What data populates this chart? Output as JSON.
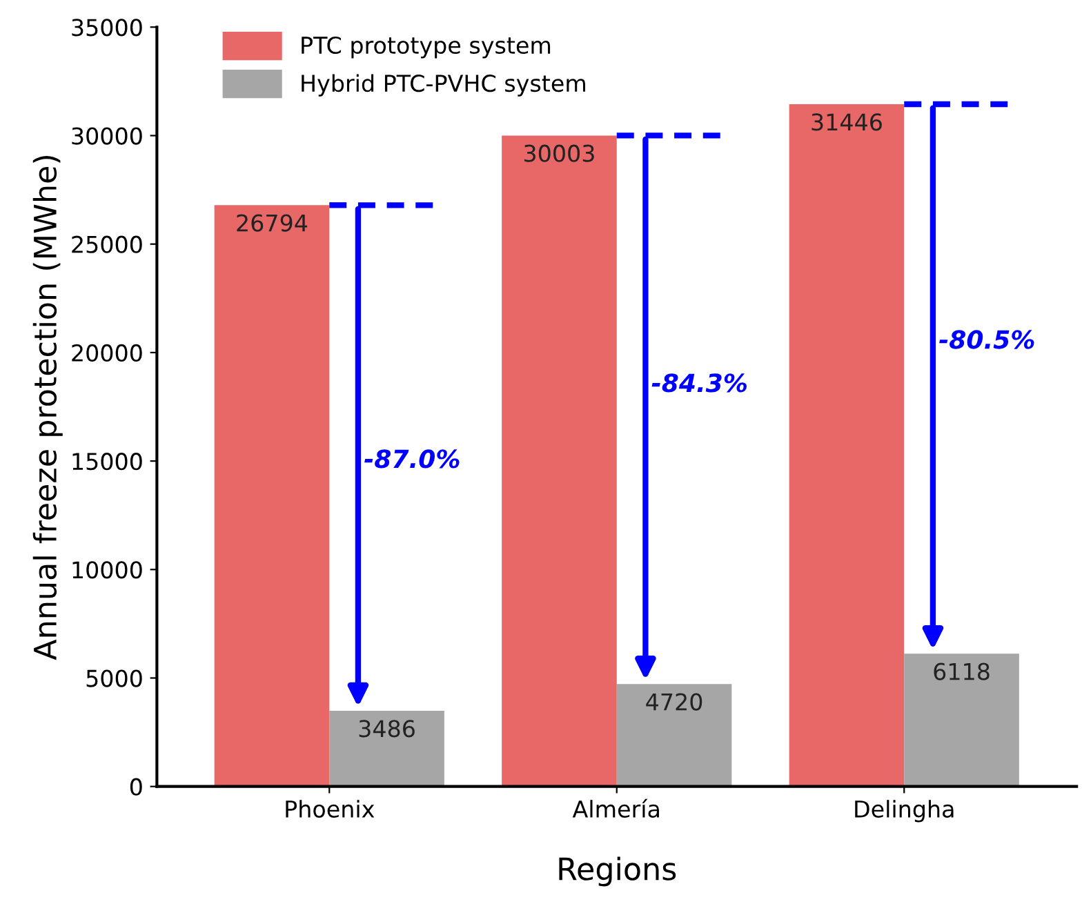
{
  "chart_data": {
    "type": "bar",
    "xlabel": "Regions",
    "ylabel": "Annual freeze protection (MWhe)",
    "categories": [
      "Phoenix",
      "Almería",
      "Delingha"
    ],
    "series": [
      {
        "name": "PTC prototype system",
        "color": "#e86868",
        "values": [
          26794,
          30003,
          31446
        ]
      },
      {
        "name": "Hybrid PTC-PVHC system",
        "color": "#a6a6a6",
        "values": [
          3486,
          4720,
          6118
        ]
      }
    ],
    "ylim": [
      0,
      35000
    ],
    "yticks": [
      0,
      5000,
      10000,
      15000,
      20000,
      25000,
      30000,
      35000
    ],
    "data_labels": true,
    "legend": "top left",
    "grid": false,
    "annotations": [
      {
        "text": "-87.0%",
        "x": "Phoenix",
        "y": 15000
      },
      {
        "text": "-84.3%",
        "x": "Almería",
        "y": 18500
      },
      {
        "text": "-80.5%",
        "x": "Delingha",
        "y": 20500
      }
    ]
  }
}
